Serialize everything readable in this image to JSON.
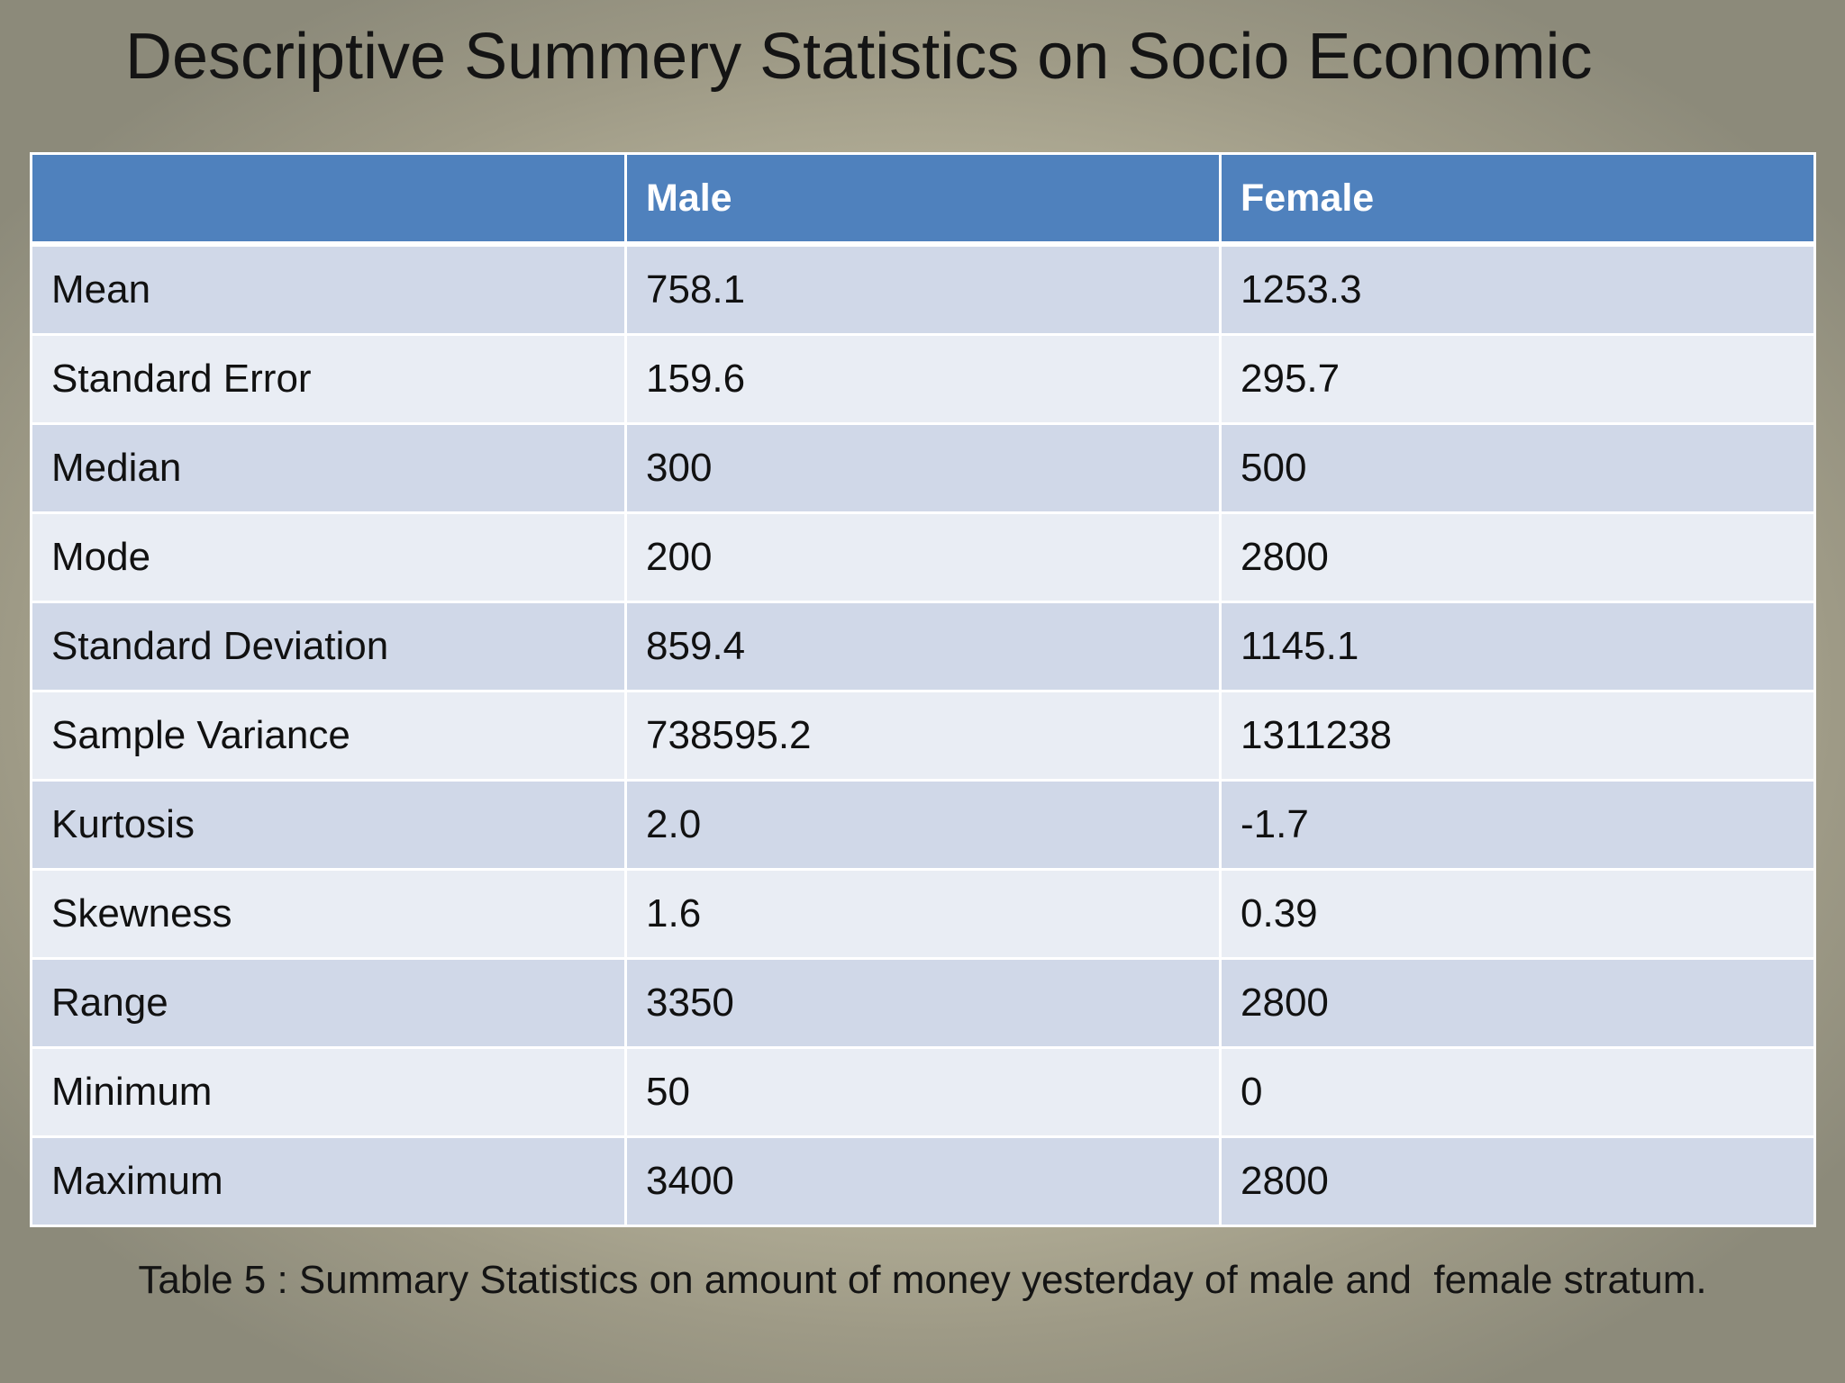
{
  "slide": {
    "title": "Descriptive Summery Statistics on Socio Economic",
    "caption": "Table 5 : Summary Statistics on amount of money yesterday of male and  female stratum."
  },
  "table": {
    "headers": [
      "",
      "Male",
      "Female"
    ],
    "rows": [
      [
        "Mean",
        "758.1",
        "1253.3"
      ],
      [
        "Standard Error",
        "159.6",
        "295.7"
      ],
      [
        "Median",
        "300",
        "500"
      ],
      [
        "Mode",
        "200",
        "2800"
      ],
      [
        "Standard Deviation",
        "859.4",
        "1145.1"
      ],
      [
        "Sample Variance",
        "738595.2",
        "1311238"
      ],
      [
        "Kurtosis",
        "2.0",
        "-1.7"
      ],
      [
        "Skewness",
        "1.6",
        "0.39"
      ],
      [
        "Range",
        "3350",
        "2800"
      ],
      [
        "Minimum",
        "50",
        "0"
      ],
      [
        "Maximum",
        "3400",
        "2800"
      ]
    ]
  },
  "colors": {
    "header_bg": "#4f81bd",
    "row_odd": "#d0d8e8",
    "row_even": "#e9edf4"
  }
}
